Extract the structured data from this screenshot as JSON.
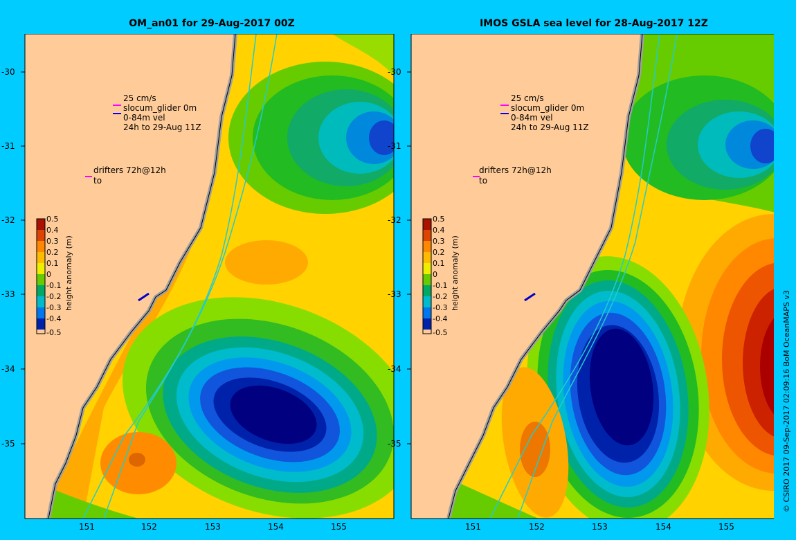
{
  "panels": [
    {
      "title": "OM_an01 for 29-Aug-2017 00Z",
      "y_ticks": [
        "-30",
        "-31",
        "-32",
        "-33",
        "-34",
        "-35"
      ],
      "x_ticks": [
        "151",
        "152",
        "153",
        "154",
        "155"
      ],
      "legend": [
        "25 cm/s",
        "slocum_glider 0m",
        "0-84m vel",
        "24h to 29-Aug 11Z",
        "drifters 72h@12h",
        "to"
      ]
    },
    {
      "title": "IMOS GSLA sea level  for 28-Aug-2017 12Z",
      "y_ticks": [
        "-30",
        "-31",
        "-32",
        "-33",
        "-34",
        "-35"
      ],
      "x_ticks": [
        "151",
        "152",
        "153",
        "154",
        "155"
      ],
      "legend": [
        "25 cm/s",
        "slocum_glider 0m",
        "0-84m vel",
        "24h to 29-Aug 11Z",
        "drifters 72h@12h",
        "to"
      ]
    }
  ],
  "colorbar": {
    "label": "height anomaly (m)",
    "ticks": [
      "0.5",
      "0.4",
      "0.3",
      "0.2",
      "0.1",
      "0",
      "-0.1",
      "-0.2",
      "-0.3",
      "-0.4",
      "-0.5"
    ]
  },
  "credit": "© CSIRO 2017   09-Sep-2017 02:09:16 BoM OceanMAPS v3",
  "colors": {
    "background": "#00ccff",
    "land": "#ffcc99",
    "coast": "#a0a0a0"
  }
}
